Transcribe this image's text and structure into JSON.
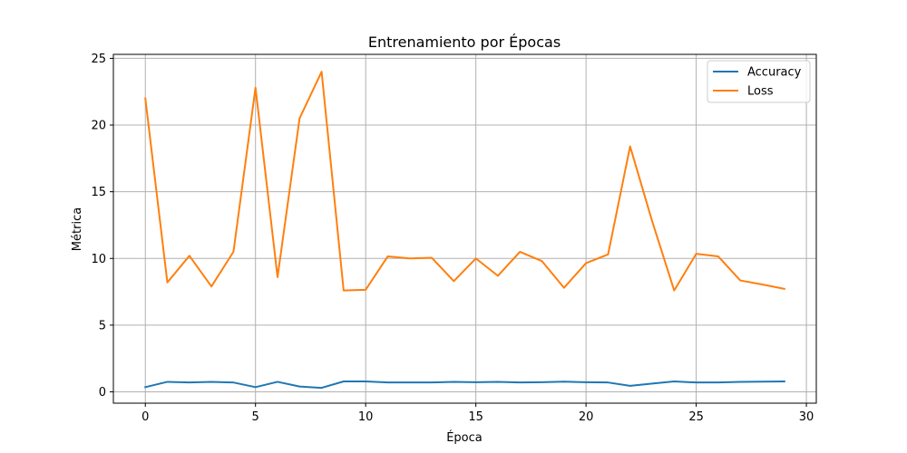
{
  "chart_data": {
    "type": "line",
    "title": "Entrenamiento por Épocas",
    "xlabel": "Época",
    "ylabel": "Métrica",
    "xlim": [
      -1.45,
      30.45
    ],
    "ylim": [
      -0.85,
      25.3
    ],
    "xticks": [
      0,
      5,
      10,
      15,
      20,
      25,
      30
    ],
    "yticks": [
      0,
      5,
      10,
      15,
      20,
      25
    ],
    "grid": true,
    "legend_position": "top-right",
    "x": [
      0,
      1,
      2,
      3,
      4,
      5,
      6,
      7,
      8,
      9,
      10,
      11,
      12,
      13,
      14,
      15,
      16,
      17,
      18,
      19,
      20,
      21,
      22,
      23,
      24,
      25,
      26,
      27,
      28,
      29
    ],
    "series": [
      {
        "name": "Accuracy",
        "color": "#1f77b4",
        "values": [
          0.35,
          0.75,
          0.7,
          0.75,
          0.7,
          0.35,
          0.75,
          0.4,
          0.3,
          0.78,
          0.78,
          0.7,
          0.7,
          0.7,
          0.75,
          0.72,
          0.75,
          0.7,
          0.72,
          0.76,
          0.72,
          0.7,
          0.45,
          0.62,
          0.78,
          0.7,
          0.7,
          0.75,
          0.76,
          0.78
        ]
      },
      {
        "name": "Loss",
        "color": "#ff7f0e",
        "values": [
          22.0,
          8.2,
          10.2,
          7.9,
          10.5,
          22.8,
          8.6,
          20.5,
          24.0,
          7.6,
          7.65,
          10.15,
          10.0,
          10.05,
          8.3,
          10.0,
          8.7,
          10.5,
          9.8,
          7.8,
          9.65,
          10.3,
          18.4,
          12.8,
          7.6,
          10.35,
          10.15,
          8.35,
          8.05,
          7.72
        ]
      }
    ]
  }
}
